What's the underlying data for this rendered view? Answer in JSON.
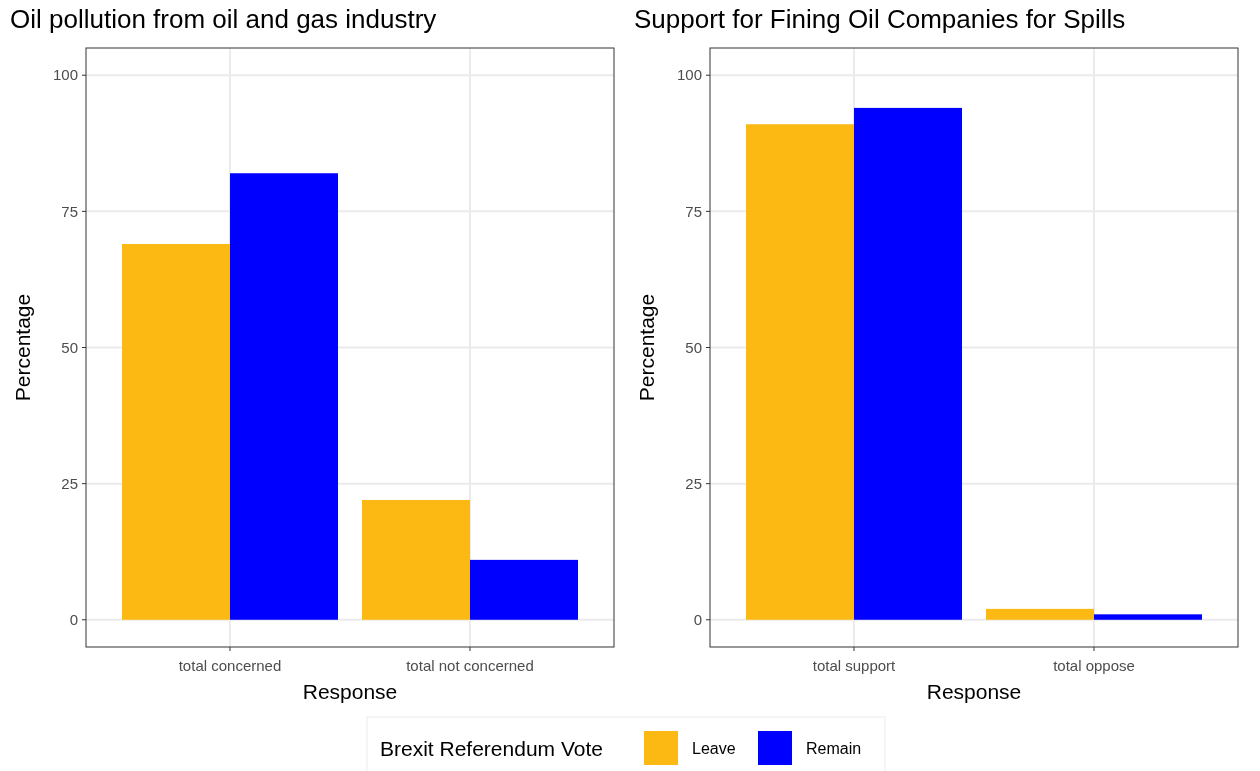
{
  "chart_data": [
    {
      "type": "bar",
      "title": "Oil pollution from oil and gas industry",
      "xlabel": "Response",
      "ylabel": "Percentage",
      "legend_title": "Brexit Referendum Vote",
      "categories": [
        "total concerned",
        "total not concerned"
      ],
      "series": [
        {
          "name": "Leave",
          "color": "#fdb913",
          "values": [
            69,
            22
          ]
        },
        {
          "name": "Remain",
          "color": "#0000ff",
          "values": [
            82,
            11
          ]
        }
      ],
      "ylim": [
        -5,
        105
      ],
      "yticks": [
        0,
        25,
        50,
        75,
        100
      ],
      "grid": true,
      "legend": "bottom"
    },
    {
      "type": "bar",
      "title": "Support for Fining Oil Companies for Spills",
      "xlabel": "Response",
      "ylabel": "Percentage",
      "categories": [
        "total support",
        "total oppose"
      ],
      "series": [
        {
          "color": "#fdb913",
          "values": [
            91,
            2
          ]
        },
        {
          "color": "#0000ff",
          "values": [
            94,
            1
          ]
        }
      ],
      "ylim": [
        -5,
        105
      ],
      "yticks": [
        0,
        25,
        50,
        75,
        100
      ],
      "grid": true
    }
  ]
}
